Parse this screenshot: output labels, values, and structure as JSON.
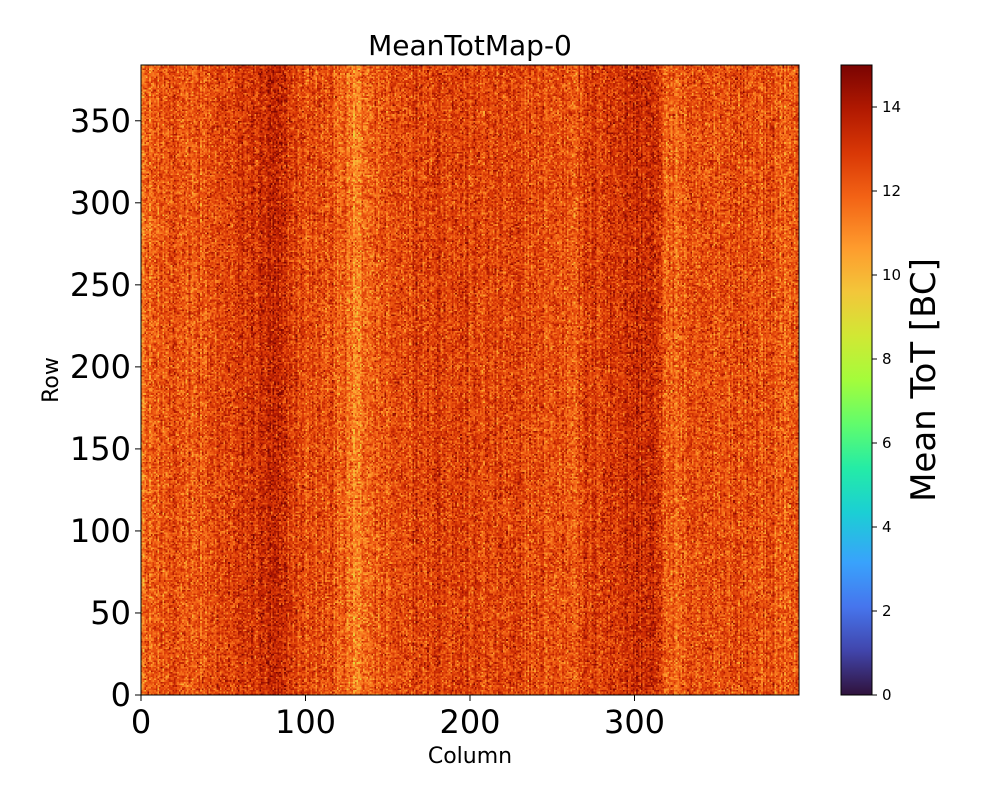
{
  "chart_data": {
    "type": "heatmap",
    "title": "MeanTotMap-0",
    "xlabel": "Column",
    "ylabel": "Row",
    "colorbar_label": "Mean ToT [BC]",
    "colormap": "turbo",
    "x_range": [
      0,
      400
    ],
    "y_range": [
      0,
      384
    ],
    "x_ticks": [
      0,
      100,
      200,
      300
    ],
    "y_ticks": [
      0,
      50,
      100,
      150,
      200,
      250,
      300,
      350
    ],
    "color_range": [
      0,
      15
    ],
    "colorbar_ticks": [
      0,
      2,
      4,
      6,
      8,
      10,
      12,
      14
    ],
    "value_distribution": {
      "min": 9,
      "max": 15,
      "typical": 12.5
    },
    "column_profile": [
      {
        "column": 0,
        "mean": 11.8
      },
      {
        "column": 20,
        "mean": 12.3
      },
      {
        "column": 40,
        "mean": 12.2
      },
      {
        "column": 60,
        "mean": 12.8
      },
      {
        "column": 80,
        "mean": 13.4
      },
      {
        "column": 100,
        "mean": 12.4
      },
      {
        "column": 120,
        "mean": 12.2
      },
      {
        "column": 130,
        "mean": 11.0
      },
      {
        "column": 140,
        "mean": 12.0
      },
      {
        "column": 160,
        "mean": 12.7
      },
      {
        "column": 180,
        "mean": 12.9
      },
      {
        "column": 200,
        "mean": 12.6
      },
      {
        "column": 220,
        "mean": 12.5
      },
      {
        "column": 240,
        "mean": 12.4
      },
      {
        "column": 260,
        "mean": 12.3
      },
      {
        "column": 280,
        "mean": 12.9
      },
      {
        "column": 295,
        "mean": 13.2
      },
      {
        "column": 310,
        "mean": 13.4
      },
      {
        "column": 320,
        "mean": 11.9
      },
      {
        "column": 340,
        "mean": 12.2
      },
      {
        "column": 360,
        "mean": 12.5
      },
      {
        "column": 380,
        "mean": 12.3
      },
      {
        "column": 399,
        "mean": 12.0
      }
    ],
    "grid": false
  }
}
